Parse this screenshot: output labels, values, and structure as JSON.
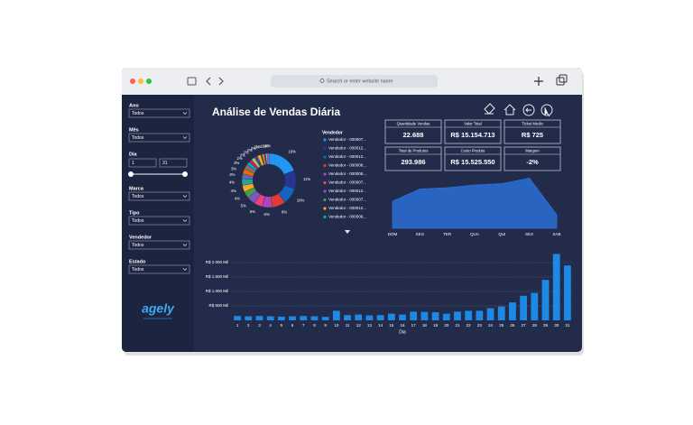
{
  "browser": {
    "address_bar": "Search or enter website name"
  },
  "dashboard": {
    "title": "Análise de Vendas Diária",
    "filters": [
      {
        "label": "Ano",
        "value": "Todos"
      },
      {
        "label": "Mês",
        "value": "Todos"
      },
      {
        "label": "Dia",
        "from": "1",
        "to": "31"
      },
      {
        "label": "Marca",
        "value": "Todos"
      },
      {
        "label": "Tipo",
        "value": "Todos"
      },
      {
        "label": "Vendedor",
        "value": "Todos"
      },
      {
        "label": "Estado",
        "value": "Todos"
      }
    ],
    "logo": "agely",
    "kpis": [
      {
        "label": "Quantidade Vendas",
        "value": "22.688"
      },
      {
        "label": "Valor Total",
        "value": "R$ 15.154.713"
      },
      {
        "label": "Ticket Medio",
        "value": "R$ 725"
      },
      {
        "label": "Total de Produtos",
        "value": "293.986"
      },
      {
        "label": "Custo Produto",
        "value": "R$ 15.525.550"
      },
      {
        "label": "Margem",
        "value": "-2%"
      }
    ]
  },
  "chart_data": [
    {
      "type": "pie",
      "values": [
        19,
        11,
        10,
        8,
        6,
        5,
        5,
        4,
        4,
        4,
        3,
        3,
        3,
        2,
        2,
        2,
        2,
        2,
        1,
        1,
        1,
        1,
        1
      ],
      "value_labels": [
        "19%",
        "11%",
        "10%",
        "8%",
        "6%",
        "5%",
        "5%",
        "4%",
        "4%",
        "4%",
        "3%",
        "3%",
        "3%",
        "2%",
        "2%",
        "2%",
        "2%",
        "2%",
        "1%",
        "1%",
        "1%",
        "1%",
        "1%"
      ],
      "colors": [
        "#2196f3",
        "#283593",
        "#1565c0",
        "#e53935",
        "#ab47bc",
        "#ec407a",
        "#7e57c2",
        "#43a047",
        "#f9a825",
        "#26a69a",
        "#5c6bc0",
        "#ef6c00",
        "#8d6e63",
        "#00acc1",
        "#d81b60",
        "#9ccc65",
        "#3949ab",
        "#ffb300",
        "#6d4c41",
        "#c0ca33",
        "#8e24aa",
        "#4fc3f7",
        "#f06292"
      ],
      "legend_title": "Vendedor",
      "legend_entries": [
        "Vendedor - 000007...",
        "Vendedor - 000012...",
        "Vendedor - 000012...",
        "Vendedor - 000008...",
        "Vendedor - 000008...",
        "Vendedor - 000007...",
        "Vendedor - 000012...",
        "Vendedor - 000007...",
        "Vendedor - 000012...",
        "Vendedor - 000009..."
      ]
    },
    {
      "type": "area",
      "categories": [
        "DOM",
        "SEG",
        "TER",
        "QUA",
        "QUI",
        "SEX",
        "SAB"
      ],
      "values": [
        2000,
        2900,
        3000,
        3200,
        3300,
        3700,
        1000
      ],
      "color": "#2a6fd6",
      "ylim": [
        0,
        4000
      ]
    },
    {
      "type": "bar",
      "x_label": "Dia",
      "categories": [
        "1",
        "2",
        "3",
        "4",
        "5",
        "6",
        "7",
        "8",
        "9",
        "10",
        "11",
        "12",
        "13",
        "14",
        "15",
        "16",
        "17",
        "18",
        "19",
        "20",
        "21",
        "22",
        "23",
        "24",
        "25",
        "26",
        "27",
        "28",
        "29",
        "30",
        "31"
      ],
      "values": [
        150000,
        140000,
        150000,
        140000,
        130000,
        140000,
        150000,
        140000,
        120000,
        330000,
        180000,
        200000,
        170000,
        180000,
        230000,
        200000,
        300000,
        290000,
        280000,
        230000,
        300000,
        330000,
        330000,
        420000,
        480000,
        620000,
        850000,
        950000,
        1400000,
        2300000,
        1900000
      ],
      "color": "#1e88e5",
      "ylim": [
        0,
        2500000
      ],
      "yticks": [
        {
          "value": 500000,
          "label": "R$ 500 Mil"
        },
        {
          "value": 1000000,
          "label": "R$ 1.000 Mil"
        },
        {
          "value": 1500000,
          "label": "R$ 1.500 Mil"
        },
        {
          "value": 2000000,
          "label": "R$ 2.000 Mil"
        }
      ],
      "grid": true
    }
  ]
}
